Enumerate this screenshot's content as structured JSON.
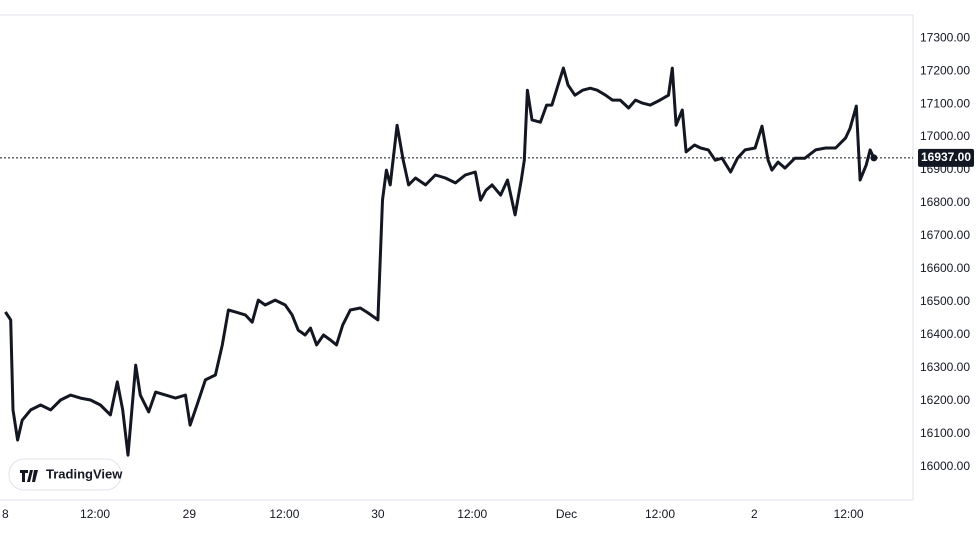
{
  "branding": "TradingView",
  "chart_data": {
    "type": "line",
    "color": "#131722",
    "grid": false,
    "x": [
      0,
      0.7,
      1.0,
      1.6,
      2.2,
      3.3,
      4.6,
      5.9,
      7.2,
      8.5,
      9.8,
      11.1,
      12.4,
      13.7,
      14.6,
      15.3,
      16.0,
      17.0,
      17.6,
      18.7,
      19.6,
      20.9,
      22.2,
      23.5,
      24.1,
      25.0,
      26.1,
      27.4,
      28.3,
      29.1,
      30.0,
      31.3,
      32.2,
      33.0,
      33.9,
      35.2,
      36.5,
      37.4,
      38.2,
      39.1,
      39.8,
      40.6,
      41.5,
      42.4,
      43.2,
      44.0,
      45.0,
      46.3,
      47.3,
      48.6,
      49.2,
      49.7,
      50.2,
      51.1,
      51.9,
      52.6,
      53.5,
      54.8,
      56.1,
      57.4,
      58.7,
      60.0,
      61.3,
      62.0,
      62.7,
      63.5,
      64.6,
      65.5,
      66.5,
      67.3,
      67.7,
      68.1,
      68.7,
      69.8,
      70.6,
      71.3,
      72.1,
      72.8,
      73.4,
      74.3,
      75.3,
      76.3,
      77.2,
      78.3,
      79.2,
      80.2,
      81.3,
      82.2,
      83.1,
      84.1,
      85.4,
      86.5,
      87.0,
      87.5,
      88.3,
      88.8,
      89.9,
      90.7,
      91.7,
      92.6,
      93.5,
      94.6,
      95.5,
      96.5,
      97.8,
      98.7,
      99.5,
      100.0,
      100.8,
      101.7,
      103.0,
      104.3,
      105.7,
      107.0,
      108.3,
      109.6,
      110.2,
      111.0,
      111.5,
      112.3,
      112.8,
      113.3
    ],
    "values": [
      16470,
      16446,
      16173,
      16082,
      16142,
      16173,
      16188,
      16173,
      16203,
      16218,
      16209,
      16203,
      16188,
      16158,
      16258,
      16173,
      16036,
      16309,
      16218,
      16167,
      16227,
      16218,
      16209,
      16218,
      16127,
      16188,
      16264,
      16279,
      16370,
      16476,
      16470,
      16461,
      16439,
      16506,
      16491,
      16506,
      16491,
      16461,
      16415,
      16400,
      16421,
      16370,
      16400,
      16385,
      16370,
      16430,
      16476,
      16482,
      16467,
      16446,
      16809,
      16900,
      16855,
      17036,
      16930,
      16855,
      16876,
      16855,
      16885,
      16876,
      16861,
      16885,
      16894,
      16809,
      16839,
      16855,
      16824,
      16870,
      16764,
      16870,
      16930,
      17142,
      17052,
      17045,
      17097,
      17097,
      17158,
      17209,
      17158,
      17127,
      17142,
      17148,
      17142,
      17127,
      17112,
      17112,
      17088,
      17112,
      17103,
      17097,
      17112,
      17127,
      17209,
      17036,
      17082,
      16955,
      16976,
      16967,
      16961,
      16930,
      16936,
      16894,
      16936,
      16961,
      16967,
      17033,
      16930,
      16900,
      16924,
      16906,
      16936,
      16936,
      16961,
      16967,
      16967,
      16997,
      17027,
      17094,
      16870,
      16915,
      16961,
      16937
    ],
    "xlim": [
      -0.7,
      118.4
    ],
    "xticks": [
      {
        "value": 0,
        "label": "8"
      },
      {
        "value": 11.7,
        "label": "12:00"
      },
      {
        "value": 24.0,
        "label": "29"
      },
      {
        "value": 36.4,
        "label": "12:00"
      },
      {
        "value": 48.6,
        "label": "30"
      },
      {
        "value": 60.9,
        "label": "12:00"
      },
      {
        "value": 73.2,
        "label": "Dec"
      },
      {
        "value": 85.4,
        "label": "12:00"
      },
      {
        "value": 97.7,
        "label": "2"
      },
      {
        "value": 110.0,
        "label": "12:00"
      }
    ],
    "ylim": [
      15900,
      17370
    ],
    "yticks": [
      {
        "value": 16000,
        "label": "16000.00"
      },
      {
        "value": 16100,
        "label": "16100.00"
      },
      {
        "value": 16200,
        "label": "16200.00"
      },
      {
        "value": 16300,
        "label": "16300.00"
      },
      {
        "value": 16400,
        "label": "16400.00"
      },
      {
        "value": 16500,
        "label": "16500.00"
      },
      {
        "value": 16600,
        "label": "16600.00"
      },
      {
        "value": 16700,
        "label": "16700.00"
      },
      {
        "value": 16800,
        "label": "16800.00"
      },
      {
        "value": 16900,
        "label": "16900.00"
      },
      {
        "value": 17000,
        "label": "17000.00"
      },
      {
        "value": 17100,
        "label": "17100.00"
      },
      {
        "value": 17200,
        "label": "17200.00"
      },
      {
        "value": 17300,
        "label": "17300.00"
      }
    ],
    "last_price": {
      "value": 16937,
      "label": "16937.00"
    }
  }
}
